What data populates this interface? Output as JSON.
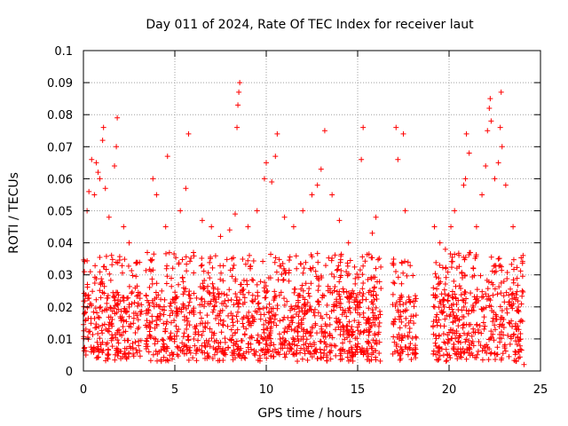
{
  "chart_data": {
    "type": "scatter",
    "title": "Day 011 of 2024, Rate Of TEC Index for receiver laut",
    "xlabel": "GPS time / hours",
    "ylabel": "ROTI / TECUs",
    "xlim": [
      0,
      25
    ],
    "ylim": [
      0,
      0.1
    ],
    "xticks": [
      0,
      5,
      10,
      15,
      20,
      25
    ],
    "xtick_labels": [
      "0",
      "5",
      "10",
      "15",
      "20",
      "25"
    ],
    "yticks": [
      0,
      0.01,
      0.02,
      0.03,
      0.04,
      0.05,
      0.06,
      0.07,
      0.08,
      0.09,
      0.1
    ],
    "ytick_labels": [
      "0",
      "0.01",
      "0.02",
      "0.03",
      "0.04",
      "0.05",
      "0.06",
      "0.07",
      "0.08",
      "0.09",
      "0.1"
    ],
    "grid": true,
    "marker": "+",
    "marker_color": "#ff0000",
    "data_coverage_hours": [
      [
        0,
        3.2
      ],
      [
        3.4,
        16.3
      ],
      [
        16.9,
        18.2
      ],
      [
        19.1,
        24.1
      ]
    ],
    "typical_range": [
      0.005,
      0.025
    ],
    "points": [
      [
        0.05,
        0.031
      ],
      [
        0.2,
        0.05
      ],
      [
        0.3,
        0.056
      ],
      [
        0.45,
        0.066
      ],
      [
        0.6,
        0.055
      ],
      [
        0.7,
        0.065
      ],
      [
        0.8,
        0.062
      ],
      [
        0.9,
        0.06
      ],
      [
        1.05,
        0.072
      ],
      [
        1.1,
        0.076
      ],
      [
        1.2,
        0.057
      ],
      [
        1.4,
        0.048
      ],
      [
        1.7,
        0.064
      ],
      [
        1.8,
        0.07
      ],
      [
        1.85,
        0.079
      ],
      [
        2.2,
        0.045
      ],
      [
        2.5,
        0.04
      ],
      [
        3.0,
        0.016
      ],
      [
        3.8,
        0.06
      ],
      [
        4.0,
        0.055
      ],
      [
        4.5,
        0.045
      ],
      [
        4.6,
        0.067
      ],
      [
        5.3,
        0.05
      ],
      [
        5.6,
        0.057
      ],
      [
        5.75,
        0.074
      ],
      [
        6.5,
        0.047
      ],
      [
        7.0,
        0.045
      ],
      [
        7.5,
        0.042
      ],
      [
        8.0,
        0.044
      ],
      [
        8.3,
        0.049
      ],
      [
        8.4,
        0.076
      ],
      [
        8.45,
        0.083
      ],
      [
        8.5,
        0.087
      ],
      [
        8.55,
        0.09
      ],
      [
        9.0,
        0.045
      ],
      [
        9.5,
        0.05
      ],
      [
        9.9,
        0.06
      ],
      [
        10.0,
        0.065
      ],
      [
        10.3,
        0.059
      ],
      [
        10.5,
        0.067
      ],
      [
        10.6,
        0.074
      ],
      [
        11.0,
        0.048
      ],
      [
        11.5,
        0.045
      ],
      [
        12.0,
        0.05
      ],
      [
        12.5,
        0.055
      ],
      [
        12.8,
        0.058
      ],
      [
        13.0,
        0.063
      ],
      [
        13.2,
        0.075
      ],
      [
        13.6,
        0.055
      ],
      [
        14.0,
        0.047
      ],
      [
        14.5,
        0.04
      ],
      [
        15.2,
        0.066
      ],
      [
        15.3,
        0.076
      ],
      [
        15.8,
        0.043
      ],
      [
        16.0,
        0.048
      ],
      [
        16.2,
        0.015
      ],
      [
        17.1,
        0.076
      ],
      [
        17.2,
        0.066
      ],
      [
        17.5,
        0.074
      ],
      [
        17.6,
        0.05
      ],
      [
        17.8,
        0.015
      ],
      [
        19.2,
        0.045
      ],
      [
        19.5,
        0.04
      ],
      [
        19.8,
        0.038
      ],
      [
        20.1,
        0.045
      ],
      [
        20.3,
        0.05
      ],
      [
        20.8,
        0.058
      ],
      [
        20.9,
        0.06
      ],
      [
        20.95,
        0.074
      ],
      [
        21.1,
        0.068
      ],
      [
        21.5,
        0.045
      ],
      [
        21.8,
        0.055
      ],
      [
        22.0,
        0.064
      ],
      [
        22.1,
        0.075
      ],
      [
        22.2,
        0.082
      ],
      [
        22.25,
        0.085
      ],
      [
        22.3,
        0.078
      ],
      [
        22.5,
        0.06
      ],
      [
        22.7,
        0.065
      ],
      [
        22.8,
        0.076
      ],
      [
        22.85,
        0.087
      ],
      [
        22.9,
        0.07
      ],
      [
        23.1,
        0.058
      ],
      [
        23.5,
        0.045
      ],
      [
        24.0,
        0.025
      ],
      [
        24.1,
        0.002
      ]
    ]
  }
}
